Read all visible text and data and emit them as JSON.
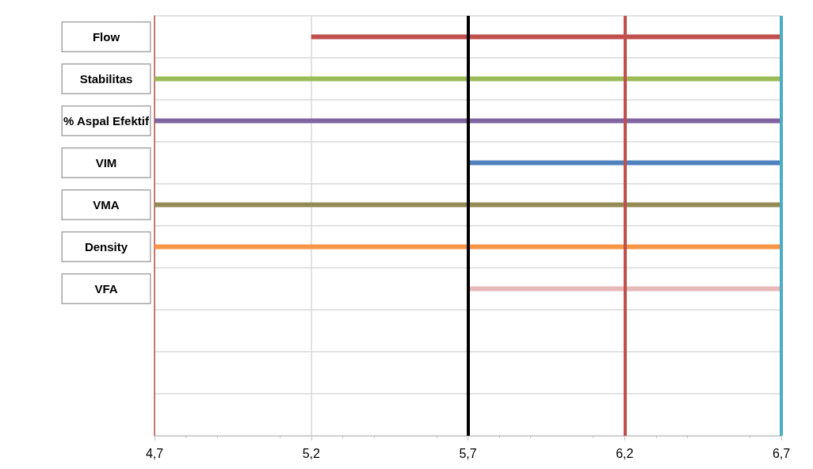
{
  "chart_data": {
    "type": "bar",
    "orientation": "horizontal",
    "categories": [
      "Flow",
      "Stabilitas",
      "% Aspal Efektif",
      "VIM",
      "VMA",
      "Density",
      "VFA",
      null,
      null,
      null
    ],
    "base": [
      5.2,
      4.7,
      4.7,
      5.7,
      4.7,
      4.7,
      5.7,
      null,
      null,
      null
    ],
    "values": [
      1.5,
      2.0,
      2.0,
      1.0,
      2.0,
      2.0,
      1.0,
      null,
      null,
      null
    ],
    "colors": [
      "#c0504d",
      "#9bbb59",
      "#8064a2",
      "#4f81bd",
      "#948a54",
      "#f79646",
      "#e6b9b8",
      null,
      null,
      null
    ],
    "xlim": [
      4.7,
      6.7
    ],
    "xticks": [
      {
        "value": 4.7,
        "label": "4,7"
      },
      {
        "value": 5.2,
        "label": "5,2"
      },
      {
        "value": 5.7,
        "label": "5,7"
      },
      {
        "value": 6.2,
        "label": "6,2"
      },
      {
        "value": 6.7,
        "label": "6,7"
      }
    ],
    "ref_lines": [
      {
        "axis": "x",
        "value": 5.7,
        "color": "#000000"
      },
      {
        "axis": "x",
        "value": 6.2,
        "color": "#c0504d"
      },
      {
        "axis": "x",
        "value": 6.7,
        "color": "#4bacc6"
      }
    ],
    "grid": true
  }
}
